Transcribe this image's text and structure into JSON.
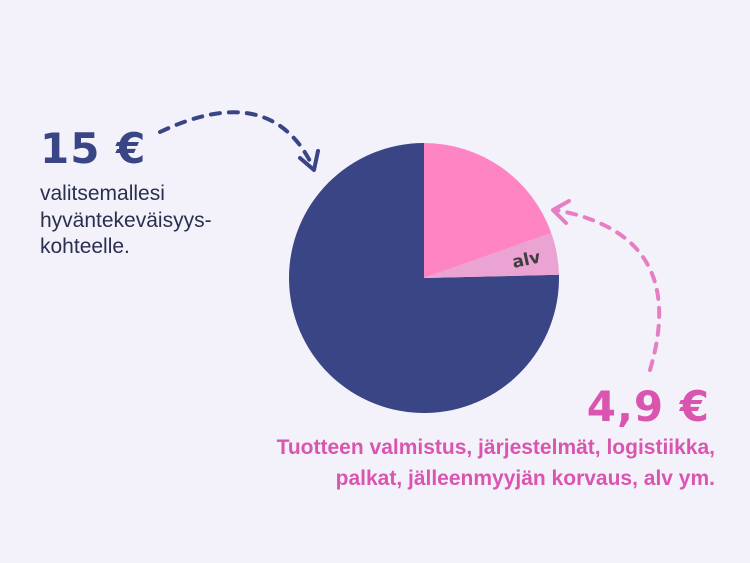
{
  "chart_data": {
    "type": "pie",
    "slices": [
      {
        "label": "",
        "value": 15,
        "color": "#3a4585"
      },
      {
        "label": "",
        "value": 3.9,
        "color": "#ff84c3"
      },
      {
        "label": "alv",
        "value": 1.0,
        "color": "#eaa3d2"
      }
    ],
    "legend": "none",
    "colors": {
      "background": "#f3f2fa",
      "navy": "#3a4585",
      "pink": "#d955b0"
    }
  },
  "left": {
    "amount": "15 €",
    "description": "valitsemallesi\nhyväntekeväisyys-\nkohteelle."
  },
  "right": {
    "amount": "4,9 €",
    "description": "Tuotteen valmistus, järjestelmät, logistiikka,\npalkat, jälleenmyyjän korvaus, alv ym."
  }
}
